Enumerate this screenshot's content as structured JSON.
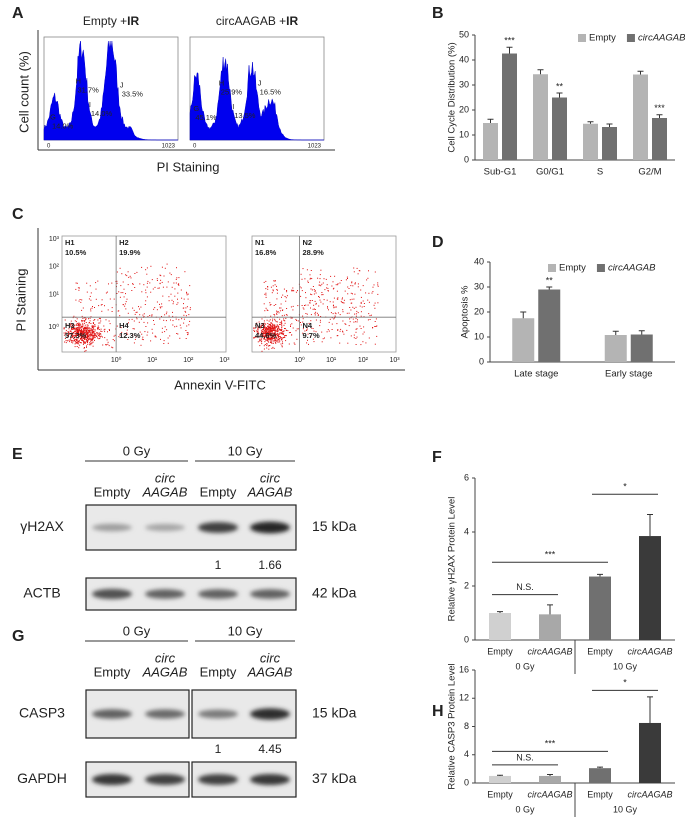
{
  "panel_labels": [
    "A",
    "B",
    "C",
    "D",
    "E",
    "F",
    "G",
    "H"
  ],
  "flow_histogram": {
    "y_label": "Cell count (%)",
    "x_label": "PI Staining",
    "axis_labels": [
      "0",
      "1023"
    ],
    "plots": [
      {
        "title": {
          "prefix": "Empty +",
          "bold": "IR"
        },
        "gates": [
          {
            "name": "G",
            "value": "14.0%"
          },
          {
            "name": "H",
            "value": "31.7%"
          },
          {
            "name": "I",
            "value": "14.0%"
          },
          {
            "name": "J",
            "value": "33.5%"
          }
        ]
      },
      {
        "title": {
          "prefix": "circAAGAB +",
          "bold": "IR"
        },
        "gates": [
          {
            "name": "G",
            "value": "45.1%"
          },
          {
            "name": "H",
            "value": "25.9%"
          },
          {
            "name": "I",
            "value": "13.5%"
          },
          {
            "name": "J",
            "value": "16.5%"
          }
        ]
      }
    ]
  },
  "flow_scatter": {
    "y_label": "PI Staining",
    "x_label": "Annexin V-FITC",
    "y_ticks": [
      "10³",
      "10²",
      "10¹",
      "10⁰"
    ],
    "x_ticks": [
      "10⁰",
      "10¹",
      "10²",
      "10³"
    ],
    "plots": [
      {
        "quadrants": [
          {
            "name": "H1",
            "value": "10.5%"
          },
          {
            "name": "H2",
            "value": "19.9%"
          },
          {
            "name": "H3",
            "value": "57.3%"
          },
          {
            "name": "H4",
            "value": "12.3%"
          }
        ]
      },
      {
        "quadrants": [
          {
            "name": "N1",
            "value": "16.8%"
          },
          {
            "name": "N2",
            "value": "28.9%"
          },
          {
            "name": "N3",
            "value": "44.6%"
          },
          {
            "name": "N4",
            "value": "9.7%"
          }
        ]
      }
    ]
  },
  "western_blots": [
    {
      "doses": [
        "0 Gy",
        "10 Gy"
      ],
      "lanes": [
        "Empty",
        {
          "line1": "circ",
          "line2": "AAGAB"
        },
        "Empty",
        {
          "line1": "circ",
          "line2": "AAGAB"
        }
      ],
      "proteins": [
        {
          "name": "γH2AX",
          "size": "15 kDa"
        },
        {
          "name": "ACTB",
          "size": "42 kDa"
        }
      ],
      "quantification": [
        "1",
        "1.66"
      ]
    },
    {
      "doses": [
        "0 Gy",
        "10 Gy"
      ],
      "lanes": [
        "Empty",
        {
          "line1": "circ",
          "line2": "AAGAB"
        },
        "Empty",
        {
          "line1": "circ",
          "line2": "AAGAB"
        }
      ],
      "proteins": [
        {
          "name": "CASP3",
          "size": "15 kDa"
        },
        {
          "name": "GAPDH",
          "size": "37 kDa"
        }
      ],
      "quantification": [
        "1",
        "4.45"
      ]
    }
  ],
  "chart_data": [
    {
      "type": "bar",
      "y_label": "Cell Cycle Distribution (%)",
      "categories": [
        "Sub-G1",
        "G0/G1",
        "S",
        "G2/M"
      ],
      "series": [
        {
          "name": "Empty",
          "color": "#b4b4b4",
          "values": [
            14.8,
            34.3,
            14.5,
            34.2
          ],
          "errors": [
            1.5,
            1.8,
            0.8,
            1.3
          ],
          "significance": [
            null,
            null,
            null,
            null
          ]
        },
        {
          "name": "circAAGAB",
          "color": "#707070",
          "values": [
            42.6,
            25.0,
            13.2,
            16.8
          ],
          "errors": [
            2.5,
            1.8,
            1.2,
            1.3
          ],
          "significance": [
            "***",
            "**",
            null,
            "***"
          ]
        }
      ],
      "ylim": [
        0,
        50
      ],
      "yticks": [
        0,
        10,
        20,
        30,
        40,
        50
      ],
      "legend": "top-right"
    },
    {
      "type": "bar",
      "y_label": "Apoptosis %",
      "categories": [
        "Late stage",
        "Early stage"
      ],
      "series": [
        {
          "name": "Empty",
          "color": "#b4b4b4",
          "values": [
            17.5,
            10.8
          ],
          "errors": [
            2.5,
            1.5
          ],
          "significance": [
            null,
            null
          ]
        },
        {
          "name": "circAAGAB",
          "color": "#707070",
          "values": [
            29.0,
            11.0
          ],
          "errors": [
            1.0,
            1.5
          ],
          "significance": [
            "**",
            null
          ]
        }
      ],
      "ylim": [
        0,
        40
      ],
      "yticks": [
        0,
        10,
        20,
        30,
        40
      ],
      "legend": "top"
    },
    {
      "type": "bar",
      "y_label": "Relative γH2AX Protein Level",
      "categories": [
        "Empty",
        "circAAGAB",
        "Empty",
        "circAAGAB"
      ],
      "groups": [
        "0 Gy",
        "10 Gy"
      ],
      "values": [
        1.0,
        0.95,
        2.35,
        3.85
      ],
      "errors": [
        0.05,
        0.35,
        0.08,
        0.8
      ],
      "colors": [
        "#d0d0d0",
        "#a8a8a8",
        "#707070",
        "#3a3a3a"
      ],
      "comparisons": [
        "N.S.",
        "***",
        "*"
      ],
      "ylim": [
        0,
        6
      ],
      "yticks": [
        0,
        2,
        4,
        6
      ]
    },
    {
      "type": "bar",
      "y_label": "Relative CASP3 Protein Level",
      "categories": [
        "Empty",
        "circAAGAB",
        "Empty",
        "circAAGAB"
      ],
      "groups": [
        "0 Gy",
        "10 Gy"
      ],
      "values": [
        1.0,
        1.0,
        2.1,
        8.5
      ],
      "errors": [
        0.1,
        0.2,
        0.15,
        3.7
      ],
      "colors": [
        "#d0d0d0",
        "#a8a8a8",
        "#707070",
        "#3a3a3a"
      ],
      "comparisons": [
        "N.S.",
        "***",
        "*"
      ],
      "ylim": [
        0,
        16
      ],
      "yticks": [
        0,
        4,
        8,
        12,
        16
      ]
    }
  ]
}
